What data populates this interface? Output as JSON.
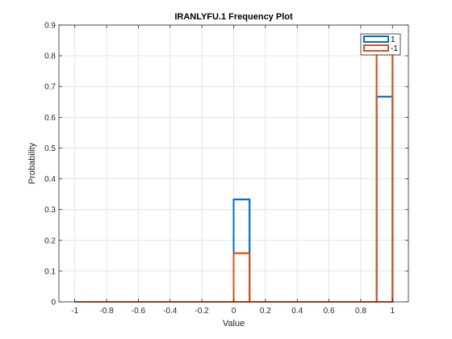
{
  "chart_data": {
    "type": "histogram",
    "title": "IRANLYFU.1 Frequency Plot",
    "xlabel": "Value",
    "ylabel": "Probability",
    "xlim": [
      -1.1,
      1.1
    ],
    "ylim": [
      0,
      0.9
    ],
    "xticks": [
      -1,
      -0.8,
      -0.6,
      -0.4,
      -0.2,
      0,
      0.2,
      0.4,
      0.6,
      0.8,
      1
    ],
    "xtick_labels": [
      "-1",
      "-0.8",
      "-0.6",
      "-0.4",
      "-0.2",
      "0",
      "0.2",
      "0.4",
      "0.6",
      "0.8",
      "1"
    ],
    "yticks": [
      0,
      0.1,
      0.2,
      0.3,
      0.4,
      0.5,
      0.6,
      0.7,
      0.8,
      0.9
    ],
    "ytick_labels": [
      "0",
      "0.1",
      "0.2",
      "0.3",
      "0.4",
      "0.5",
      "0.6",
      "0.7",
      "0.8",
      "0.9"
    ],
    "grid": true,
    "legend_position": "top-right",
    "bin_edges": [
      -1,
      -0.9,
      -0.8,
      -0.7,
      -0.6,
      -0.5,
      -0.4,
      -0.3,
      -0.2,
      -0.1,
      0,
      0.1,
      0.2,
      0.3,
      0.4,
      0.5,
      0.6,
      0.7,
      0.8,
      0.9,
      1
    ],
    "series": [
      {
        "name": "1",
        "color": "#0072BD",
        "values": [
          0,
          0,
          0,
          0,
          0,
          0,
          0,
          0,
          0,
          0,
          0.333,
          0,
          0,
          0,
          0,
          0,
          0,
          0,
          0,
          0.667
        ]
      },
      {
        "name": "-1",
        "color": "#D95319",
        "values": [
          0,
          0,
          0,
          0,
          0,
          0,
          0,
          0,
          0,
          0,
          0.158,
          0,
          0,
          0,
          0,
          0,
          0,
          0,
          0,
          0.842
        ]
      }
    ]
  }
}
